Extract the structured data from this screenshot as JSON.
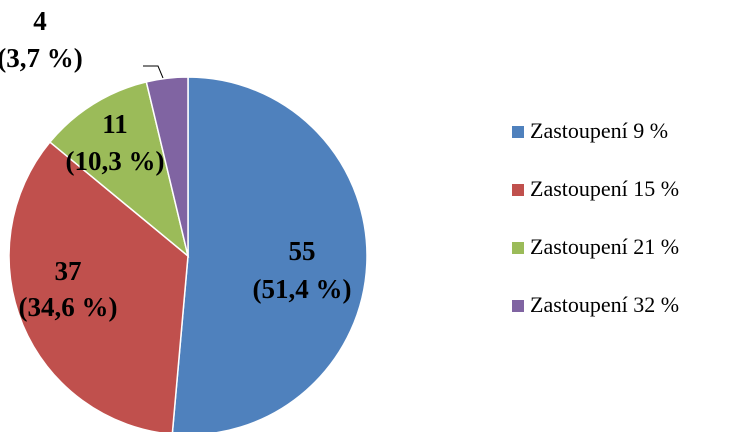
{
  "chart_data": {
    "type": "pie",
    "categories": [
      "Zastoupení 9 %",
      "Zastoupení 15 %",
      "Zastoupení 21 %",
      "Zastoupení 32 %"
    ],
    "values": [
      55,
      37,
      11,
      4
    ],
    "value_labels": [
      "55",
      "37",
      "11",
      "4"
    ],
    "percent_labels": [
      "(51,4 %)",
      "(34,6 %)",
      "(10,3 %)",
      "(3,7 %)"
    ],
    "colors": [
      "#4f81bd",
      "#c0504d",
      "#9bbb59",
      "#8064a2"
    ],
    "legend": "right"
  }
}
